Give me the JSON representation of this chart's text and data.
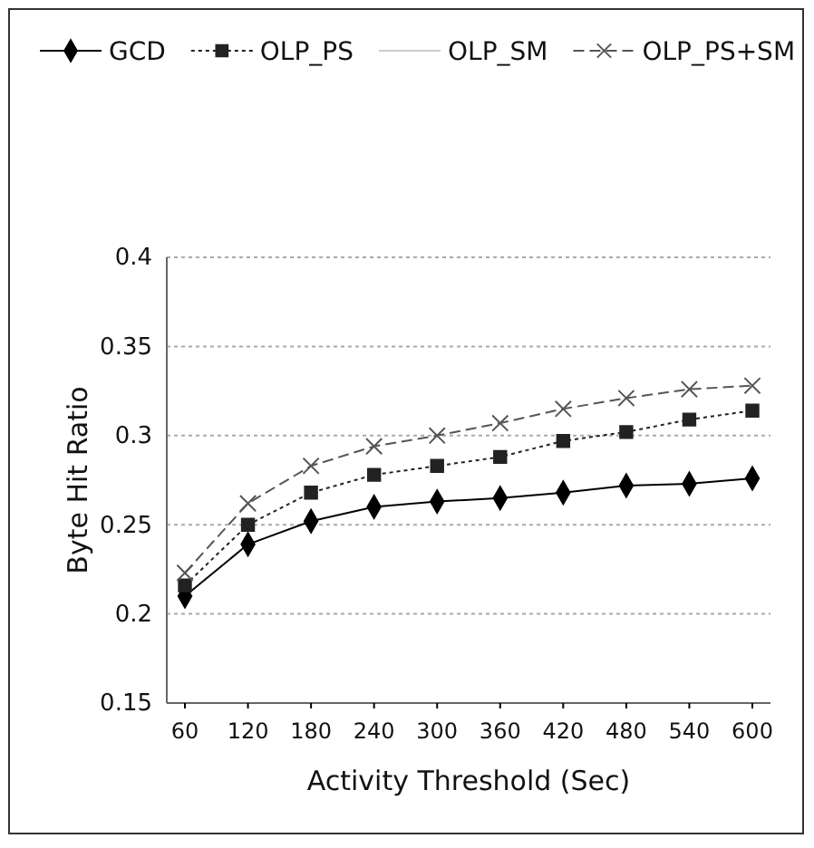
{
  "chart_data": {
    "type": "line",
    "xlabel": "Activity Threshold (Sec)",
    "ylabel": "Byte Hit Ratio",
    "categories": [
      "60",
      "120",
      "180",
      "240",
      "300",
      "360",
      "420",
      "480",
      "540",
      "600"
    ],
    "series": [
      {
        "name": "GCD",
        "color": "#000000",
        "marker": "diamond",
        "line_style": "solid",
        "values": [
          0.21,
          0.239,
          0.252,
          0.26,
          0.263,
          0.265,
          0.268,
          0.272,
          0.273,
          0.276
        ]
      },
      {
        "name": "OLP_PS",
        "color": "#222222",
        "marker": "square",
        "line_style": "dotted",
        "values": [
          0.216,
          0.25,
          0.268,
          0.278,
          0.283,
          0.288,
          0.297,
          0.302,
          0.309,
          0.314
        ]
      },
      {
        "name": "OLP_SM",
        "color": "#cccccc",
        "marker": "none",
        "line_style": "solid",
        "values": [
          null,
          null,
          null,
          null,
          null,
          null,
          null,
          null,
          null,
          null
        ]
      },
      {
        "name": "OLP_PS+SM",
        "color": "#555555",
        "marker": "cross",
        "line_style": "dashed",
        "values": [
          0.223,
          0.262,
          0.283,
          0.294,
          0.3,
          0.307,
          0.315,
          0.321,
          0.326,
          0.328
        ]
      }
    ],
    "ylim": [
      0.15,
      0.4
    ],
    "yticks": [
      0.15,
      0.2,
      0.25,
      0.3,
      0.35,
      0.4
    ],
    "grid": "y",
    "legend": "top"
  }
}
